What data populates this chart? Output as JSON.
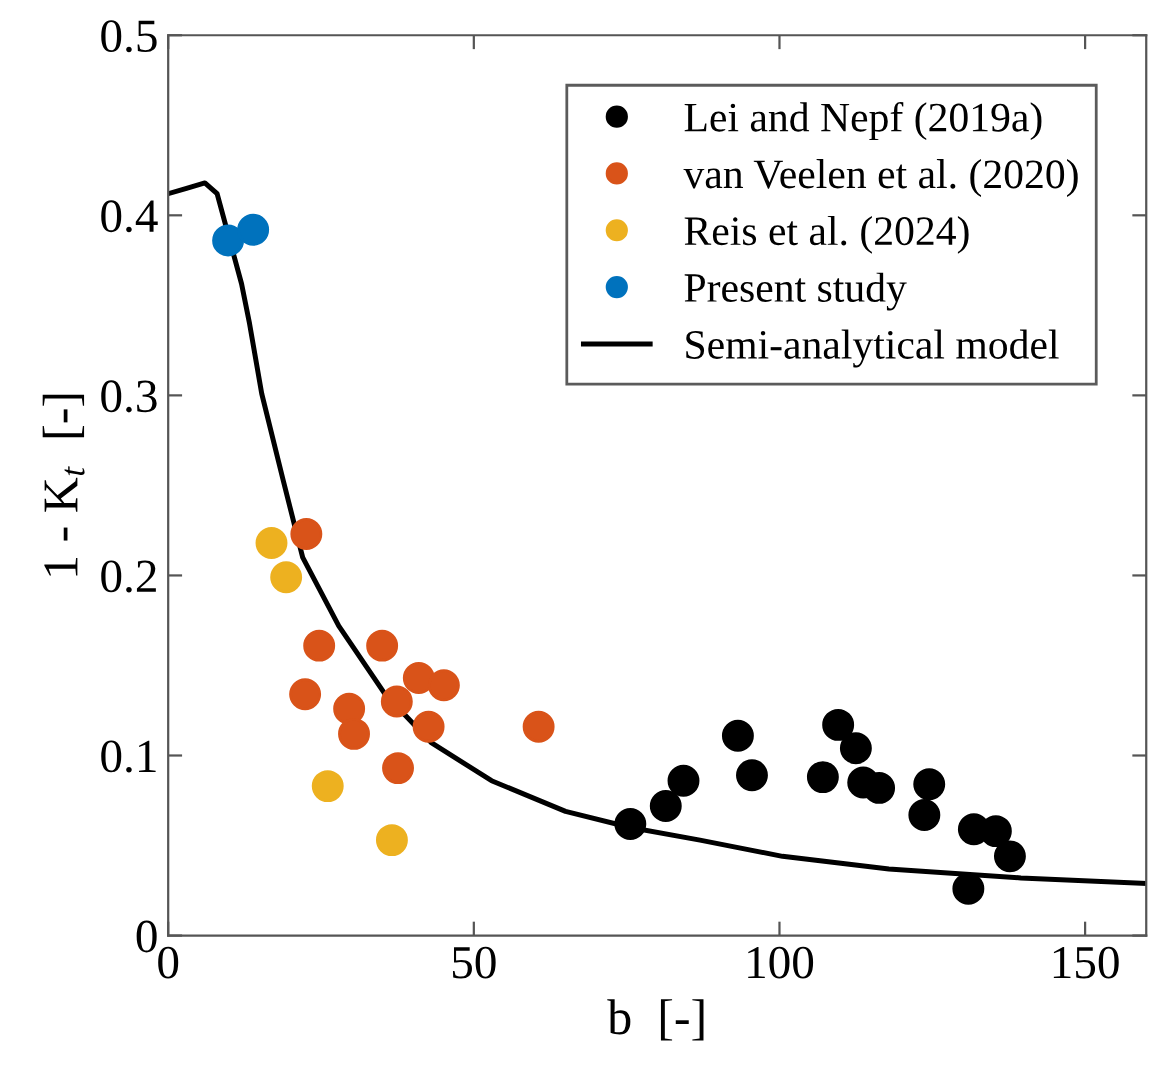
{
  "chart_data": {
    "type": "scatter",
    "xlabel": "b  [-]",
    "ylabel": "1 - K$_{t}$  [-]",
    "xlim": [
      0,
      160
    ],
    "ylim": [
      0,
      0.5
    ],
    "xticks": [
      0,
      50,
      100,
      150
    ],
    "yticks": [
      0,
      0.1,
      0.2,
      0.3,
      0.4,
      0.5
    ],
    "legend": "top right",
    "marker": "circle",
    "grid": false,
    "series": [
      {
        "name": "Lei and Nepf (2019a)",
        "color": "#000000",
        "x": [
          75.6,
          81.4,
          84.3,
          93.2,
          95.5,
          107.1,
          109.6,
          112.5,
          113.7,
          116.3,
          124.5,
          123.7,
          130.9,
          131.8,
          135.4,
          137.7
        ],
        "values": [
          0.062,
          0.072,
          0.086,
          0.111,
          0.089,
          0.088,
          0.117,
          0.104,
          0.085,
          0.082,
          0.084,
          0.067,
          0.026,
          0.059,
          0.058,
          0.044
        ]
      },
      {
        "name": "van Veelen et al. (2020)",
        "color": "#d95319",
        "x": [
          22.6,
          24.7,
          22.4,
          29.6,
          30.4,
          35.0,
          37.4,
          37.6,
          41.0,
          45.1,
          42.6,
          60.6
        ],
        "values": [
          0.223,
          0.161,
          0.134,
          0.126,
          0.112,
          0.161,
          0.13,
          0.093,
          0.143,
          0.139,
          0.116,
          0.116
        ]
      },
      {
        "name": "Reis et al. (2024)",
        "color": "#edb120",
        "x": [
          16.9,
          19.3,
          26.1,
          36.6
        ],
        "values": [
          0.218,
          0.199,
          0.083,
          0.053
        ]
      },
      {
        "name": "Present study",
        "color": "#0072bd",
        "x": [
          9.8,
          13.9
        ],
        "values": [
          0.386,
          0.392
        ]
      },
      {
        "name": "Semi-analytical model",
        "type": "line",
        "marker": "none",
        "line_style": "solid",
        "color": "#000000",
        "x": [
          0,
          3,
          6,
          8,
          12,
          13.3,
          15.3,
          18.8,
          22,
          27.9,
          35.5,
          43.1,
          52.9,
          65,
          75.6,
          87,
          100.5,
          117.9,
          139.5,
          160
        ],
        "values": [
          0.412,
          0.415,
          0.418,
          0.412,
          0.362,
          0.34,
          0.301,
          0.253,
          0.21,
          0.172,
          0.134,
          0.107,
          0.086,
          0.069,
          0.06,
          0.053,
          0.044,
          0.037,
          0.032,
          0.029
        ]
      }
    ]
  }
}
